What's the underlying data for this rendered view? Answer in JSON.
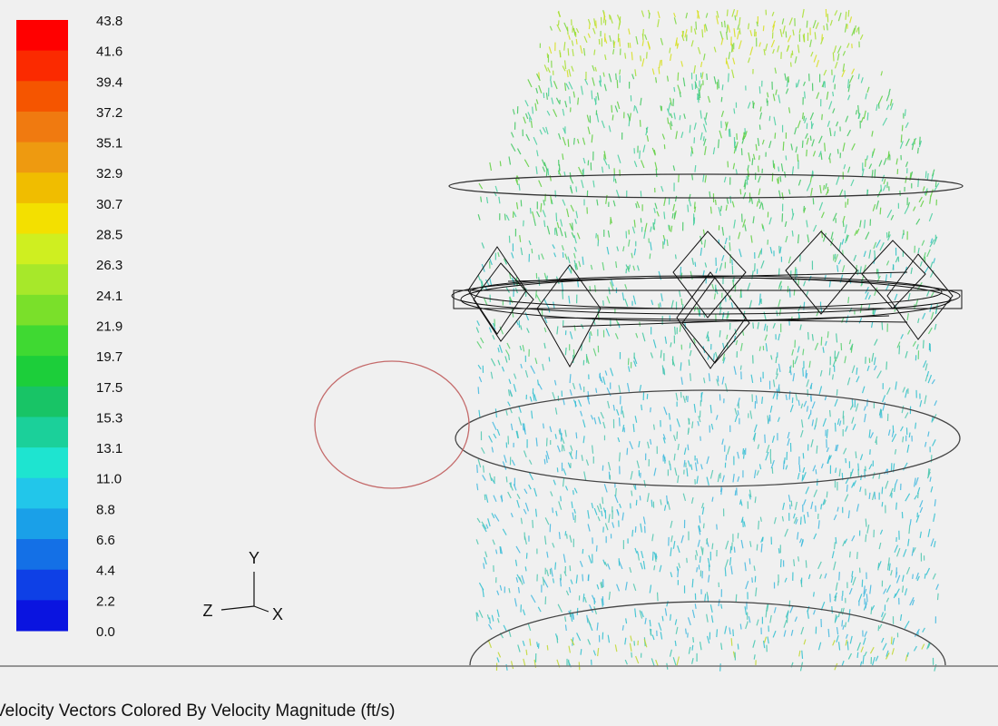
{
  "legend": {
    "labels": [
      "43.8",
      "41.6",
      "39.4",
      "37.2",
      "35.1",
      "32.9",
      "30.7",
      "28.5",
      "26.3",
      "24.1",
      "21.9",
      "19.7",
      "17.5",
      "15.3",
      "13.1",
      "11.0",
      "8.8",
      "6.6",
      "4.4",
      "2.2",
      "0.0"
    ],
    "colors": [
      "#ff0000",
      "#fb2a00",
      "#f55500",
      "#f07a10",
      "#ee9a10",
      "#f0bd00",
      "#f3e000",
      "#cfef20",
      "#a7e82a",
      "#7ae02a",
      "#3fd932",
      "#1cce3a",
      "#18c466",
      "#1bd09a",
      "#1ee4d0",
      "#22c6ea",
      "#1aa0e8",
      "#1470e6",
      "#0e40e6",
      "#0a14e0"
    ]
  },
  "axes": {
    "y": "Y",
    "z": "Z",
    "x": "X"
  },
  "caption": "Velocity Vectors Colored By Velocity Magnitude (ft/s)"
}
